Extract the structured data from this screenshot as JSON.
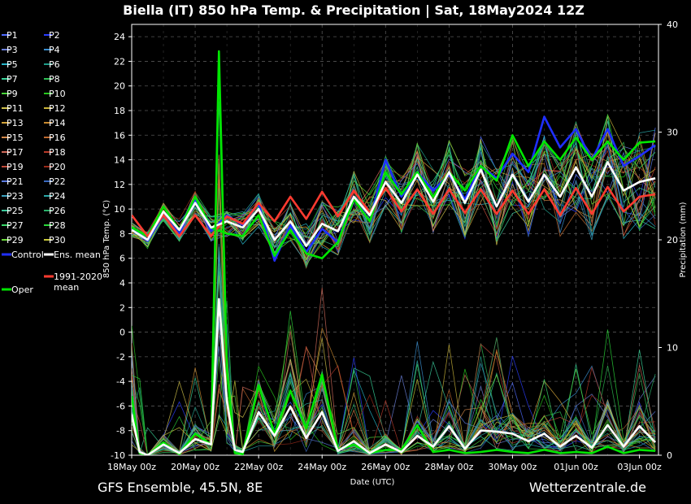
{
  "page": {
    "title": "Biella  (IT)  850 hPa Temp. & Precipitation | Sat, 18May2024 12Z",
    "footer_left": "GFS Ensemble, 45.5N, 8E",
    "footer_right": "Wetterzentrale.de"
  },
  "chart_data": {
    "type": "line",
    "title": "Biella  (IT)  850 hPa Temp. & Precipitation | Sat, 18May2024 12Z",
    "xlabel": "Date (UTC)",
    "ylabel_left": "850 hPa Temp. (°C)",
    "ylabel_right": "Precipitation (mm)",
    "x_ticks": [
      "18May 00z",
      "20May 00z",
      "22May 00z",
      "24May 00z",
      "26May 00z",
      "28May 00z",
      "30May 00z",
      "01Jun 00z",
      "03Jun 00z"
    ],
    "x_range_days": [
      0,
      16.6
    ],
    "y_left_range": [
      -10,
      25
    ],
    "y_left_ticks": [
      -10,
      -8,
      -6,
      -4,
      -2,
      0,
      2,
      4,
      6,
      8,
      10,
      12,
      14,
      16,
      18,
      20,
      22,
      24
    ],
    "y_right_range": [
      0,
      40
    ],
    "y_right_ticks": [
      0,
      10,
      20,
      30,
      40
    ],
    "grid": true,
    "legend_placement": "left",
    "legend": [
      {
        "label": "P1",
        "color": "#4f6bff"
      },
      {
        "label": "P2",
        "color": "#2a3dff"
      },
      {
        "label": "P3",
        "color": "#6a7fd8"
      },
      {
        "label": "P4",
        "color": "#3a8fd0"
      },
      {
        "label": "P5",
        "color": "#27b5c9"
      },
      {
        "label": "P6",
        "color": "#1f9e8a"
      },
      {
        "label": "P7",
        "color": "#3ad39a"
      },
      {
        "label": "P8",
        "color": "#2fbf55"
      },
      {
        "label": "P9",
        "color": "#49d63a"
      },
      {
        "label": "P10",
        "color": "#28c81e"
      },
      {
        "label": "P11",
        "color": "#cfc04a"
      },
      {
        "label": "P12",
        "color": "#c9b43a"
      },
      {
        "label": "P13",
        "color": "#d4a53a"
      },
      {
        "label": "P14",
        "color": "#c98a30"
      },
      {
        "label": "P15",
        "color": "#d68a4a"
      },
      {
        "label": "P16",
        "color": "#c06a30"
      },
      {
        "label": "P17",
        "color": "#d06a5a"
      },
      {
        "label": "P18",
        "color": "#b83a2a"
      },
      {
        "label": "P19",
        "color": "#c04a3a"
      },
      {
        "label": "P20",
        "color": "#9a2a1a"
      },
      {
        "label": "P21",
        "color": "#5a7adf"
      },
      {
        "label": "P22",
        "color": "#3a6abf"
      },
      {
        "label": "P23",
        "color": "#3aa0bf"
      },
      {
        "label": "P24",
        "color": "#2aa8a8"
      },
      {
        "label": "P25",
        "color": "#3ac89a"
      },
      {
        "label": "P26",
        "color": "#2ab06a"
      },
      {
        "label": "P27",
        "color": "#3ad86a"
      },
      {
        "label": "P28",
        "color": "#2ad83a"
      },
      {
        "label": "P29",
        "color": "#6ad83a"
      },
      {
        "label": "P30",
        "color": "#c8c83a"
      },
      {
        "label": "Control",
        "color": "#1f2fff"
      },
      {
        "label": "Ens. mean",
        "color": "#ffffff"
      },
      {
        "label": "Oper",
        "color": "#00e600"
      },
      {
        "label": "1991-2020 mean",
        "color": "#ff3b30"
      }
    ],
    "series": [
      {
        "name": "Ens. mean",
        "color": "#ffffff",
        "kind": "temp",
        "x": [
          0,
          0.5,
          1,
          1.5,
          2,
          2.5,
          3,
          3.5,
          4,
          4.5,
          5,
          5.5,
          6,
          6.5,
          7,
          7.5,
          8,
          8.5,
          9,
          9.5,
          10,
          10.5,
          11,
          11.5,
          12,
          12.5,
          13,
          13.5,
          14,
          14.5,
          15,
          15.5,
          16,
          16.5
        ],
        "y": [
          8.3,
          7.5,
          9.8,
          8.3,
          10.5,
          8.5,
          9.0,
          8.5,
          10.0,
          7.5,
          9.0,
          7.0,
          8.8,
          8.2,
          11.0,
          9.5,
          12.2,
          10.5,
          12.8,
          10.6,
          13.0,
          10.5,
          13.2,
          10.2,
          12.8,
          10.6,
          12.8,
          11.0,
          13.4,
          11.0,
          13.8,
          11.5,
          12.2,
          12.5
        ]
      },
      {
        "name": "Oper",
        "color": "#00e600",
        "kind": "temp",
        "x": [
          0,
          0.5,
          1,
          1.5,
          2,
          2.5,
          3,
          3.5,
          4,
          4.5,
          5,
          5.5,
          6,
          6.5,
          7,
          7.5,
          8,
          8.5,
          9,
          9.5,
          10,
          10.5,
          11,
          11.5,
          12,
          12.5,
          13,
          13.5,
          14,
          14.5,
          15,
          15.5,
          16,
          16.5
        ],
        "y": [
          8.5,
          7.8,
          10.2,
          8.3,
          11.0,
          8.5,
          8.0,
          7.8,
          9.5,
          6.2,
          8.3,
          6.4,
          6.0,
          7.3,
          10.8,
          9.0,
          13.0,
          11.2,
          13.0,
          11.0,
          13.0,
          11.5,
          13.5,
          12.3,
          16.0,
          13.5,
          15.5,
          14.0,
          15.8,
          14.0,
          15.5,
          14.0,
          15.4,
          15.5
        ]
      },
      {
        "name": "Control",
        "color": "#1f2fff",
        "kind": "temp",
        "x": [
          0,
          0.5,
          1,
          1.5,
          2,
          2.5,
          3,
          3.5,
          4,
          4.5,
          5,
          5.5,
          6,
          6.5,
          7,
          7.5,
          8,
          8.5,
          9,
          9.5,
          10,
          10.5,
          11,
          11.5,
          12,
          12.5,
          13,
          13.5,
          14,
          14.5,
          15,
          15.5,
          16,
          16.5
        ],
        "y": [
          8.4,
          7.4,
          9.5,
          8.0,
          10.8,
          8.2,
          9.5,
          8.7,
          10.5,
          5.8,
          8.7,
          6.5,
          8.4,
          7.3,
          11.0,
          9.0,
          14.0,
          11.0,
          13.0,
          11.5,
          12.8,
          10.8,
          13.5,
          12.5,
          14.5,
          13.0,
          17.5,
          15.0,
          16.5,
          14.0,
          16.5,
          13.5,
          14.3,
          15.2
        ]
      },
      {
        "name": "1991-2020 mean",
        "color": "#ff3b30",
        "kind": "temp",
        "x": [
          0,
          0.5,
          1,
          1.5,
          2,
          2.5,
          3,
          3.5,
          4,
          4.5,
          5,
          5.5,
          6,
          6.5,
          7,
          7.5,
          8,
          8.5,
          9,
          9.5,
          10,
          10.5,
          11,
          11.5,
          12,
          12.5,
          13,
          13.5,
          14,
          14.5,
          15,
          15.5,
          16,
          16.5
        ],
        "y": [
          9.5,
          7.8,
          9.5,
          7.8,
          9.5,
          7.8,
          9.4,
          8.8,
          10.5,
          9.0,
          11.0,
          9.2,
          11.4,
          9.4,
          11.5,
          9.7,
          11.7,
          9.8,
          11.6,
          9.6,
          11.6,
          9.7,
          11.6,
          9.6,
          11.5,
          9.6,
          11.6,
          9.5,
          11.7,
          9.6,
          11.8,
          9.8,
          11.0,
          11.2
        ]
      },
      {
        "name": "Ens. mean precipitation",
        "color": "#ffffff",
        "kind": "precip",
        "x": [
          0,
          0.25,
          0.5,
          1,
          1.5,
          2,
          2.5,
          2.75,
          3,
          3.25,
          3.5,
          4,
          4.5,
          5,
          5.5,
          6,
          6.5,
          7,
          7.5,
          8,
          8.5,
          9,
          9.5,
          10,
          10.5,
          11,
          11.5,
          12,
          12.5,
          13,
          13.5,
          14,
          14.5,
          15,
          15.5,
          16,
          16.5
        ],
        "y": [
          3.8,
          0.3,
          0.0,
          1.0,
          0.2,
          1.5,
          1.0,
          14.5,
          5.0,
          0.5,
          0.3,
          4.0,
          1.8,
          4.5,
          1.6,
          4.0,
          0.4,
          1.3,
          0.2,
          1.0,
          0.3,
          1.8,
          0.8,
          2.7,
          0.6,
          2.3,
          2.2,
          2.0,
          1.3,
          2.0,
          0.8,
          1.8,
          0.7,
          2.8,
          0.8,
          2.7,
          1.2
        ]
      },
      {
        "name": "Oper precipitation",
        "color": "#00e600",
        "kind": "precip",
        "x": [
          0,
          0.25,
          0.5,
          1,
          1.5,
          2,
          2.5,
          2.75,
          3,
          3.25,
          3.5,
          4,
          4.5,
          5,
          5.5,
          6,
          6.5,
          7,
          7.5,
          8,
          8.5,
          9,
          9.5,
          10,
          10.5,
          11,
          11.5,
          12,
          12.5,
          13,
          13.5,
          14,
          14.5,
          15,
          15.5,
          16,
          16.5
        ],
        "y": [
          5.5,
          0.2,
          0.0,
          1.2,
          0.1,
          2.0,
          1.0,
          37.5,
          8.0,
          0.2,
          0.1,
          6.5,
          2.0,
          6.0,
          2.5,
          7.5,
          0.5,
          1.0,
          0.2,
          0.5,
          0.5,
          2.8,
          0.3,
          0.5,
          0.2,
          0.3,
          0.5,
          0.3,
          0.2,
          0.5,
          0.2,
          0.3,
          0.2,
          0.8,
          0.2,
          0.5,
          0.4
        ]
      }
    ]
  }
}
